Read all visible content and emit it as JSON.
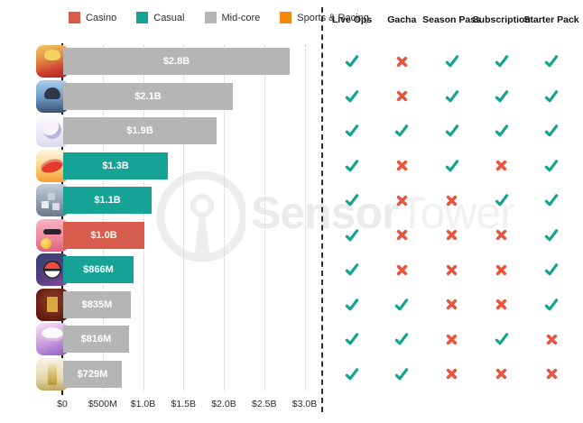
{
  "legend": {
    "items": [
      {
        "label": "Casino",
        "color": "#d65c4b"
      },
      {
        "label": "Casual",
        "color": "#16a295"
      },
      {
        "label": "Mid-core",
        "color": "#b5b5b5"
      },
      {
        "label": "Sports & Racing",
        "color": "#f28a0e"
      }
    ]
  },
  "watermark": {
    "bold": "Sensor",
    "light": "Tower"
  },
  "chart_data": {
    "type": "bar",
    "orientation": "horizontal",
    "title": "",
    "xlabel": "",
    "ylabel": "",
    "x_axis_ticks": [
      "$0",
      "$500M",
      "$1.0B",
      "$1.5B",
      "$2.0B",
      "$2.5B",
      "$3.0B"
    ],
    "xlim_billions": [
      0,
      3
    ],
    "gridlines": true,
    "bars": [
      {
        "icon": "honor-of-kings",
        "label": "$2.8B",
        "value_billions": 2.8,
        "category": "Mid-core"
      },
      {
        "icon": "pubg-mobile",
        "label": "$2.1B",
        "value_billions": 2.1,
        "category": "Mid-core"
      },
      {
        "icon": "genshin-impact",
        "label": "$1.9B",
        "value_billions": 1.9,
        "category": "Mid-core"
      },
      {
        "icon": "candy-crush-saga",
        "label": "$1.3B",
        "value_billions": 1.3,
        "category": "Casual"
      },
      {
        "icon": "roblox",
        "label": "$1.1B",
        "value_billions": 1.1,
        "category": "Casual"
      },
      {
        "icon": "coin-master",
        "label": "$1.0B",
        "value_billions": 1.0,
        "category": "Casino"
      },
      {
        "icon": "pokemon-go",
        "label": "$866M",
        "value_billions": 0.866,
        "category": "Casual"
      },
      {
        "icon": "three-kingdoms-tactics",
        "label": "$835M",
        "value_billions": 0.835,
        "category": "Mid-core"
      },
      {
        "icon": "uma-musume",
        "label": "$816M",
        "value_billions": 0.816,
        "category": "Mid-core"
      },
      {
        "icon": "fate-grand-order",
        "label": "$729M",
        "value_billions": 0.729,
        "category": "Mid-core"
      }
    ]
  },
  "matrix": {
    "columns": [
      "Live Ops",
      "Gacha",
      "Season Pass",
      "Subscription",
      "Starter Pack"
    ],
    "check_color": "#13a48e",
    "cross_color": "#e8543e",
    "rows": [
      [
        true,
        false,
        true,
        true,
        true
      ],
      [
        true,
        false,
        true,
        true,
        true
      ],
      [
        true,
        true,
        true,
        true,
        true
      ],
      [
        true,
        false,
        true,
        false,
        true
      ],
      [
        true,
        false,
        false,
        true,
        true
      ],
      [
        true,
        false,
        false,
        false,
        true
      ],
      [
        true,
        false,
        false,
        false,
        true
      ],
      [
        true,
        true,
        false,
        false,
        true
      ],
      [
        true,
        true,
        false,
        true,
        false
      ],
      [
        true,
        true,
        false,
        false,
        false
      ]
    ]
  }
}
